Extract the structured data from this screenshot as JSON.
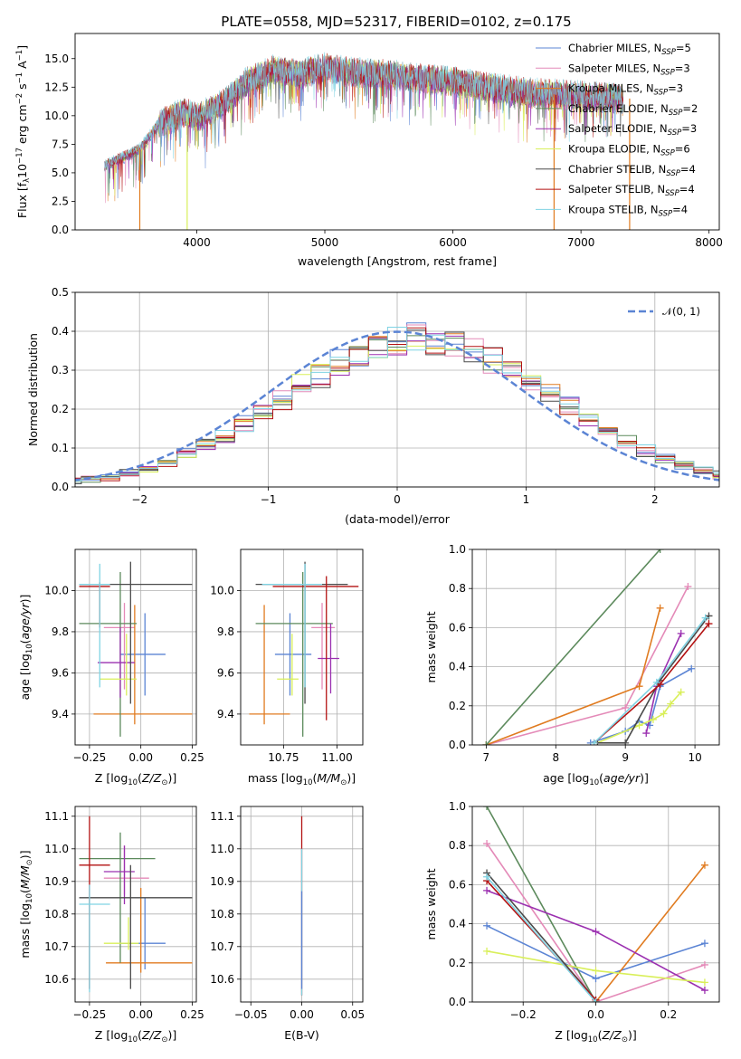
{
  "title": "PLATE=0558, MJD=52317, FIBERID=0102, z=0.175",
  "series": [
    {
      "name": "Chabrier MILES",
      "nssp": "5",
      "color": "#5b84d4"
    },
    {
      "name": "Salpeter MILES",
      "nssp": "3",
      "color": "#e48ab8"
    },
    {
      "name": "Kroupa MILES",
      "nssp": "3",
      "color": "#e07b20"
    },
    {
      "name": "Chabrier ELODIE",
      "nssp": "2",
      "color": "#5c8a5c"
    },
    {
      "name": "Salpeter ELODIE",
      "nssp": "3",
      "color": "#9b30b0"
    },
    {
      "name": "Kroupa ELODIE",
      "nssp": "6",
      "color": "#d9ef5a"
    },
    {
      "name": "Chabrier STELIB",
      "nssp": "4",
      "color": "#4a4a4a"
    },
    {
      "name": "Salpeter STELIB",
      "nssp": "4",
      "color": "#b31212"
    },
    {
      "name": "Kroupa STELIB",
      "nssp": "4",
      "color": "#7fd3e3"
    }
  ],
  "chart_data": [
    {
      "type": "line",
      "panel": "spectrum",
      "xlabel": "wavelength [Angstrom, rest frame]",
      "ylabel": "Flux [f_λ 10^-17 erg cm^-2 s^-1 A^-1]",
      "xlim": [
        3050,
        8080
      ],
      "ylim": [
        0,
        17.2
      ],
      "xticks": [
        4000,
        5000,
        6000,
        7000,
        8000
      ],
      "yticks": [
        0.0,
        2.5,
        5.0,
        7.5,
        10.0,
        12.5,
        15.0
      ],
      "ytick_labels": [
        "0.0",
        "2.5",
        "5.0",
        "7.5",
        "10.0",
        "12.5",
        "15.0"
      ],
      "legend_placement": "right",
      "envelope": [
        [
          3280,
          5.6
        ],
        [
          3400,
          6.2
        ],
        [
          3550,
          7.0
        ],
        [
          3700,
          9.2
        ],
        [
          3900,
          10.3
        ],
        [
          4000,
          9.8
        ],
        [
          4200,
          11.0
        ],
        [
          4400,
          13.0
        ],
        [
          4600,
          14.0
        ],
        [
          4800,
          13.6
        ],
        [
          5000,
          14.2
        ],
        [
          5200,
          13.8
        ],
        [
          5500,
          13.6
        ],
        [
          5800,
          13.2
        ],
        [
          6000,
          13.0
        ],
        [
          6300,
          12.4
        ],
        [
          6600,
          12.0
        ],
        [
          6900,
          11.8
        ],
        [
          7200,
          11.6
        ],
        [
          7330,
          11.5
        ]
      ]
    },
    {
      "type": "step",
      "panel": "residual-histogram",
      "xlabel": "(data-model)/error",
      "ylabel": "Normed distribution",
      "xlim": [
        -2.5,
        2.5
      ],
      "ylim": [
        0,
        0.5
      ],
      "xticks": [
        -2,
        -1,
        0,
        1,
        2
      ],
      "xtick_labels": [
        "−2",
        "−1",
        "0",
        "1",
        "2"
      ],
      "yticks": [
        0.0,
        0.1,
        0.2,
        0.3,
        0.4,
        0.5
      ],
      "ytick_labels": [
        "0.0",
        "0.1",
        "0.2",
        "0.3",
        "0.4",
        "0.5"
      ],
      "grid": true,
      "reference_curve": {
        "name": "𝒩(0, 1)",
        "mean": 0,
        "sigma": 1,
        "color": "#5b84d4"
      }
    },
    {
      "type": "errorbar",
      "panel": "age-vs-Z",
      "xlabel": "Z [log10(Z/Z⊙)]",
      "ylabel": "age [log10(age/yr)]",
      "xlim": [
        -0.32,
        0.27
      ],
      "ylim": [
        9.25,
        10.2
      ],
      "xticks": [
        -0.25,
        0.0,
        0.25
      ],
      "xtick_labels": [
        "−0.25",
        "0.00",
        "0.25"
      ],
      "yticks": [
        9.4,
        9.6,
        9.8,
        10.0
      ],
      "ytick_labels": [
        "9.4",
        "9.6",
        "9.8",
        "10.0"
      ],
      "grid": true,
      "points": [
        {
          "s": 0,
          "x": 0.02,
          "xe": [
            0.12,
            0.1
          ],
          "y": 9.69,
          "ye": [
            0.2,
            0.2
          ]
        },
        {
          "s": 1,
          "x": -0.08,
          "xe": [
            0.1,
            0.05
          ],
          "y": 9.82,
          "ye": [
            0.3,
            0.12
          ]
        },
        {
          "s": 2,
          "x": -0.03,
          "xe": [
            0.2,
            0.28
          ],
          "y": 9.4,
          "ye": [
            0.05,
            0.53
          ]
        },
        {
          "s": 3,
          "x": -0.1,
          "xe": [
            0.2,
            0.08
          ],
          "y": 9.84,
          "ye": [
            0.55,
            0.25
          ]
        },
        {
          "s": 4,
          "x": -0.1,
          "xe": [
            0.11,
            0.07
          ],
          "y": 9.65,
          "ye": [
            0.17,
            0.17
          ]
        },
        {
          "s": 5,
          "x": -0.07,
          "xe": [
            0.13,
            0.05
          ],
          "y": 9.57,
          "ye": [
            0.08,
            0.22
          ]
        },
        {
          "s": 6,
          "x": -0.05,
          "xe": [
            0.25,
            0.3
          ],
          "y": 10.03,
          "ye": [
            0.58,
            0.11
          ]
        },
        {
          "s": 7,
          "x": -0.2,
          "xe": [
            0.1,
            0.05
          ],
          "y": 10.02,
          "ye": [
            0.2,
            0.02
          ]
        },
        {
          "s": 8,
          "x": -0.2,
          "xe": [
            0.1,
            0.05
          ],
          "y": 10.03,
          "ye": [
            0.5,
            0.1
          ]
        }
      ]
    },
    {
      "type": "errorbar",
      "panel": "age-vs-mass",
      "xlabel": "mass [log10(M/M⊙)]",
      "ylabel": "",
      "xlim": [
        10.55,
        11.12
      ],
      "ylim": [
        9.25,
        10.2
      ],
      "xticks": [
        10.75,
        11.0
      ],
      "xtick_labels": [
        "10.75",
        "11.00"
      ],
      "yticks": [
        9.4,
        9.6,
        9.8,
        10.0
      ],
      "ytick_labels": [
        "9.4",
        "9.6",
        "9.8",
        "10.0"
      ],
      "grid": true,
      "points": [
        {
          "s": 0,
          "x": 10.78,
          "xe": [
            0.07,
            0.1
          ],
          "y": 9.69,
          "ye": [
            0.2,
            0.2
          ]
        },
        {
          "s": 1,
          "x": 10.93,
          "xe": [
            0.05,
            0.06
          ],
          "y": 9.82,
          "ye": [
            0.3,
            0.12
          ]
        },
        {
          "s": 2,
          "x": 10.66,
          "xe": [
            0.07,
            0.12
          ],
          "y": 9.4,
          "ye": [
            0.05,
            0.53
          ]
        },
        {
          "s": 3,
          "x": 10.84,
          "xe": [
            0.22,
            0.14
          ],
          "y": 9.84,
          "ye": [
            0.55,
            0.25
          ]
        },
        {
          "s": 4,
          "x": 10.97,
          "xe": [
            0.06,
            0.04
          ],
          "y": 9.67,
          "ye": [
            0.17,
            0.17
          ]
        },
        {
          "s": 5,
          "x": 10.79,
          "xe": [
            0.07,
            0.03
          ],
          "y": 9.57,
          "ye": [
            0.08,
            0.22
          ]
        },
        {
          "s": 6,
          "x": 10.85,
          "xe": [
            0.23,
            0.2
          ],
          "y": 10.03,
          "ye": [
            0.58,
            0.11
          ]
        },
        {
          "s": 7,
          "x": 10.95,
          "xe": [
            0.25,
            0.15
          ],
          "y": 10.02,
          "ye": [
            0.65,
            0.05
          ]
        },
        {
          "s": 8,
          "x": 10.85,
          "xe": [
            0.2,
            0.08
          ],
          "y": 10.03,
          "ye": [
            0.5,
            0.1
          ]
        }
      ]
    },
    {
      "type": "line",
      "panel": "weight-vs-age",
      "xlabel": "age [log10(age/yr)]",
      "ylabel": "mass weight",
      "xlim": [
        6.8,
        10.35
      ],
      "ylim": [
        0,
        1
      ],
      "xticks": [
        7,
        8,
        9,
        10
      ],
      "xtick_labels": [
        "7",
        "8",
        "9",
        "10"
      ],
      "yticks": [
        0.0,
        0.2,
        0.4,
        0.6,
        0.8,
        1.0
      ],
      "ytick_labels": [
        "0.0",
        "0.2",
        "0.4",
        "0.6",
        "0.8",
        "1.0"
      ],
      "grid": true,
      "series": [
        {
          "s": 0,
          "points": [
            [
              8.5,
              0.01
            ],
            [
              9.0,
              0.07
            ],
            [
              9.2,
              0.12
            ],
            [
              9.35,
              0.1
            ],
            [
              9.5,
              0.3
            ],
            [
              9.95,
              0.39
            ]
          ]
        },
        {
          "s": 1,
          "points": [
            [
              7.0,
              0.0
            ],
            [
              9.0,
              0.19
            ],
            [
              9.9,
              0.81
            ]
          ]
        },
        {
          "s": 2,
          "points": [
            [
              7.0,
              0.0
            ],
            [
              9.2,
              0.3
            ],
            [
              9.5,
              0.7
            ]
          ]
        },
        {
          "s": 3,
          "points": [
            [
              7.0,
              0.0
            ],
            [
              9.5,
              1.0
            ]
          ]
        },
        {
          "s": 4,
          "points": [
            [
              9.3,
              0.06
            ],
            [
              9.45,
              0.3
            ],
            [
              9.8,
              0.57
            ]
          ]
        },
        {
          "s": 5,
          "points": [
            [
              8.6,
              0.01
            ],
            [
              9.2,
              0.1
            ],
            [
              9.4,
              0.13
            ],
            [
              9.55,
              0.16
            ],
            [
              9.65,
              0.21
            ],
            [
              9.8,
              0.27
            ]
          ]
        },
        {
          "s": 6,
          "points": [
            [
              8.6,
              0.01
            ],
            [
              9.0,
              0.01
            ],
            [
              9.5,
              0.33
            ],
            [
              10.2,
              0.66
            ]
          ]
        },
        {
          "s": 7,
          "points": [
            [
              8.55,
              0.01
            ],
            [
              9.5,
              0.31
            ],
            [
              10.2,
              0.62
            ]
          ]
        },
        {
          "s": 8,
          "points": [
            [
              8.55,
              0.01
            ],
            [
              9.45,
              0.32
            ],
            [
              10.15,
              0.65
            ]
          ]
        }
      ]
    },
    {
      "type": "errorbar",
      "panel": "mass-vs-Z",
      "xlabel": "Z [log10(Z/Z⊙)]",
      "ylabel": "mass [log10(M/M⊙)]",
      "xlim": [
        -0.32,
        0.27
      ],
      "ylim": [
        10.53,
        11.13
      ],
      "xticks": [
        -0.25,
        0.0,
        0.25
      ],
      "xtick_labels": [
        "−0.25",
        "0.00",
        "0.25"
      ],
      "yticks": [
        10.6,
        10.7,
        10.8,
        10.9,
        11.0,
        11.1
      ],
      "ytick_labels": [
        "10.6",
        "10.7",
        "10.8",
        "10.9",
        "11.0",
        "11.1"
      ],
      "grid": true,
      "points": [
        {
          "s": 0,
          "x": 0.02,
          "xe": [
            0.12,
            0.1
          ],
          "y": 10.71,
          "ye": [
            0.08,
            0.14
          ]
        },
        {
          "s": 1,
          "x": -0.08,
          "xe": [
            0.1,
            0.12
          ],
          "y": 10.91,
          "ye": [
            0.05,
            0.1
          ]
        },
        {
          "s": 2,
          "x": 0.0,
          "xe": [
            0.17,
            0.25
          ],
          "y": 10.65,
          "ye": [
            0.03,
            0.23
          ]
        },
        {
          "s": 3,
          "x": -0.1,
          "xe": [
            0.2,
            0.17
          ],
          "y": 10.97,
          "ye": [
            0.32,
            0.08
          ]
        },
        {
          "s": 4,
          "x": -0.08,
          "xe": [
            0.1,
            0.05
          ],
          "y": 10.93,
          "ye": [
            0.1,
            0.08
          ]
        },
        {
          "s": 5,
          "x": -0.06,
          "xe": [
            0.12,
            0.05
          ],
          "y": 10.71,
          "ye": [
            0.02,
            0.08
          ]
        },
        {
          "s": 6,
          "x": -0.05,
          "xe": [
            0.25,
            0.3
          ],
          "y": 10.85,
          "ye": [
            0.28,
            0.1
          ]
        },
        {
          "s": 7,
          "x": -0.25,
          "xe": [
            0.05,
            0.1
          ],
          "y": 10.95,
          "ye": [
            0.38,
            0.15
          ]
        },
        {
          "s": 8,
          "x": -0.25,
          "xe": [
            0.05,
            0.1
          ],
          "y": 10.83,
          "ye": [
            0.27,
            0.06
          ]
        }
      ]
    },
    {
      "type": "errorbar",
      "panel": "mass-vs-EBV",
      "xlabel": "E(B-V)",
      "ylabel": "",
      "xlim": [
        -0.06,
        0.06
      ],
      "ylim": [
        10.53,
        11.13
      ],
      "xticks": [
        -0.05,
        0.0,
        0.05
      ],
      "xtick_labels": [
        "−0.05",
        "0.00",
        "0.05"
      ],
      "yticks": [
        10.6,
        10.7,
        10.8,
        10.9,
        11.0,
        11.1
      ],
      "ytick_labels": [
        "10.6",
        "10.7",
        "10.8",
        "10.9",
        "11.0",
        "11.1"
      ],
      "grid": true,
      "points": [
        {
          "s": 7,
          "x": 0.0,
          "xe": [
            0,
            0
          ],
          "y": 10.85,
          "ye": [
            0.3,
            0.25
          ]
        },
        {
          "s": 8,
          "x": 0.0,
          "xe": [
            0,
            0
          ],
          "y": 10.75,
          "ye": [
            0.2,
            0.25
          ]
        },
        {
          "s": 0,
          "x": 0.0,
          "xe": [
            0,
            0
          ],
          "y": 10.72,
          "ye": [
            0.15,
            0.15
          ]
        }
      ]
    },
    {
      "type": "line",
      "panel": "weight-vs-Z",
      "xlabel": "Z [log10(Z/Z⊙)]",
      "ylabel": "mass weight",
      "xlim": [
        -0.34,
        0.34
      ],
      "ylim": [
        0,
        1
      ],
      "xticks": [
        -0.2,
        0.0,
        0.2
      ],
      "xtick_labels": [
        "−0.2",
        "0.0",
        "0.2"
      ],
      "yticks": [
        0.0,
        0.2,
        0.4,
        0.6,
        0.8,
        1.0
      ],
      "ytick_labels": [
        "0.0",
        "0.2",
        "0.4",
        "0.6",
        "0.8",
        "1.0"
      ],
      "grid": true,
      "series": [
        {
          "s": 0,
          "points": [
            [
              -0.3,
              0.39
            ],
            [
              0.0,
              0.12
            ],
            [
              0.3,
              0.3
            ]
          ]
        },
        {
          "s": 1,
          "points": [
            [
              -0.3,
              0.81
            ],
            [
              0.0,
              0.0
            ],
            [
              0.3,
              0.19
            ]
          ]
        },
        {
          "s": 2,
          "points": [
            [
              0.0,
              0.0
            ],
            [
              0.3,
              0.7
            ]
          ]
        },
        {
          "s": 3,
          "points": [
            [
              -0.3,
              1.0
            ],
            [
              0.0,
              0.0
            ]
          ]
        },
        {
          "s": 4,
          "points": [
            [
              -0.3,
              0.57
            ],
            [
              0.0,
              0.36
            ],
            [
              0.3,
              0.06
            ]
          ]
        },
        {
          "s": 5,
          "points": [
            [
              -0.3,
              0.26
            ],
            [
              0.0,
              0.16
            ],
            [
              0.3,
              0.1
            ]
          ]
        },
        {
          "s": 6,
          "points": [
            [
              -0.3,
              0.66
            ],
            [
              0.0,
              0.01
            ]
          ]
        },
        {
          "s": 7,
          "points": [
            [
              -0.3,
              0.62
            ],
            [
              0.0,
              0.01
            ]
          ]
        },
        {
          "s": 8,
          "points": [
            [
              -0.3,
              0.64
            ],
            [
              0.0,
              0.0
            ]
          ]
        }
      ]
    }
  ]
}
